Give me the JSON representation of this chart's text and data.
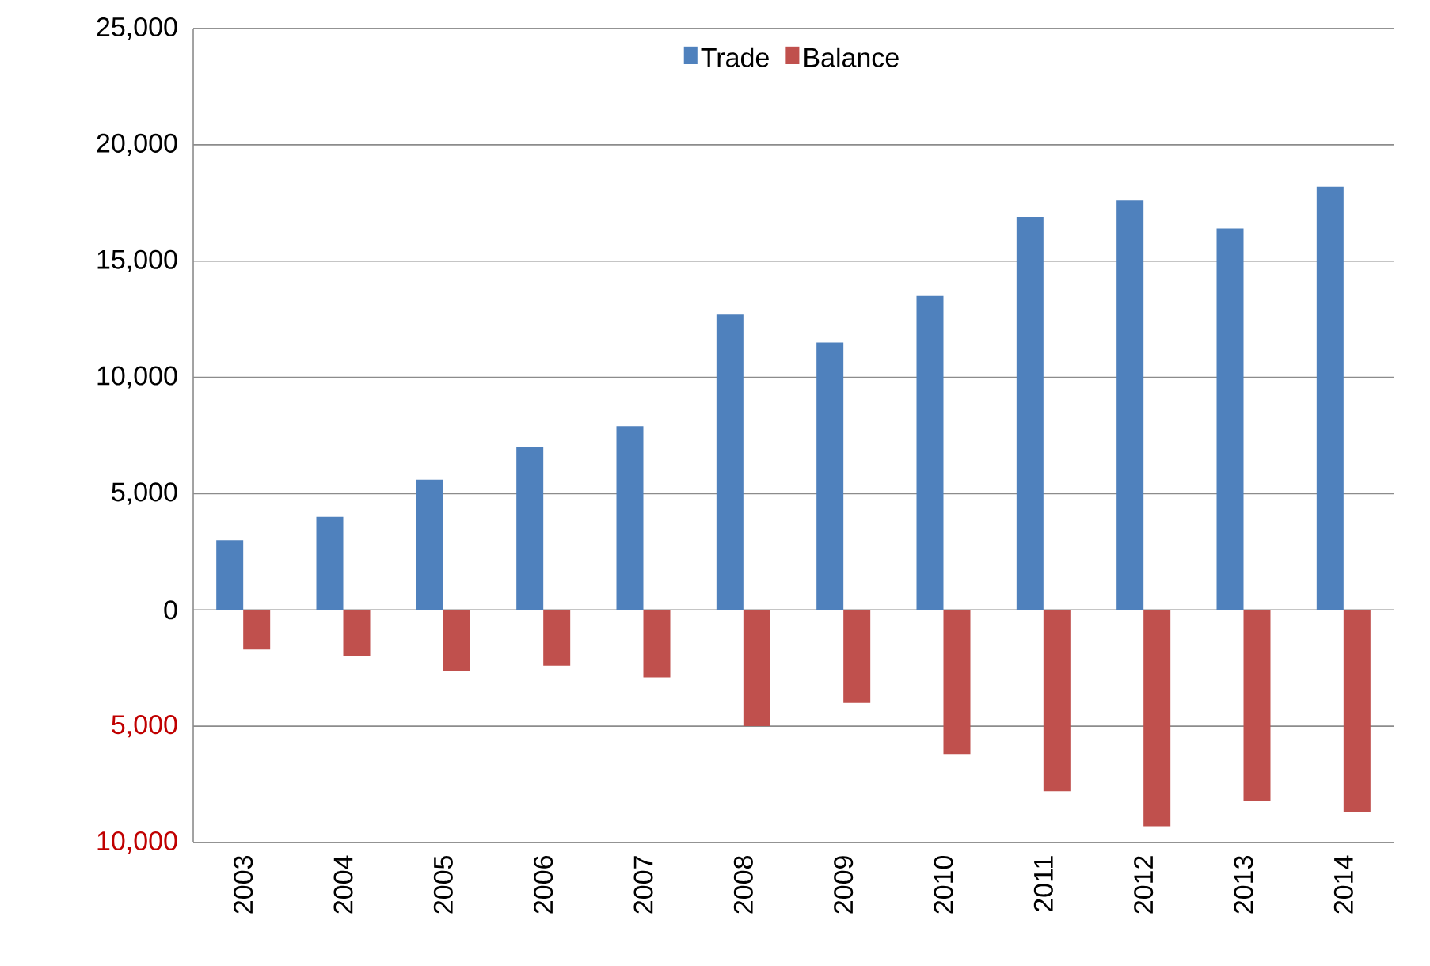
{
  "chart_data": {
    "type": "bar",
    "categories": [
      "2003",
      "2004",
      "2005",
      "2006",
      "2007",
      "2008",
      "2009",
      "2010",
      "2011",
      "2012",
      "2013",
      "2014"
    ],
    "series": [
      {
        "name": "Trade",
        "color": "#4f81bd",
        "values": [
          3000,
          4000,
          5600,
          7000,
          7900,
          12700,
          11500,
          13500,
          16900,
          17600,
          16400,
          18200
        ]
      },
      {
        "name": "Balance",
        "color": "#c0504d",
        "values": [
          -1700,
          -2000,
          -2650,
          -2400,
          -2900,
          -5000,
          -4000,
          -6200,
          -7800,
          -9300,
          -8200,
          -8700
        ]
      }
    ],
    "ylim": [
      -10000,
      25000
    ],
    "yticks": [
      {
        "value": -10000,
        "label": "10,000"
      },
      {
        "value": -5000,
        "label": "5,000"
      },
      {
        "value": 0,
        "label": "0"
      },
      {
        "value": 5000,
        "label": "5,000"
      },
      {
        "value": 10000,
        "label": "10,000"
      },
      {
        "value": 15000,
        "label": "15,000"
      },
      {
        "value": 20000,
        "label": "20,000"
      },
      {
        "value": 25000,
        "label": "25,000"
      }
    ],
    "grid": "y",
    "legend": "top"
  }
}
